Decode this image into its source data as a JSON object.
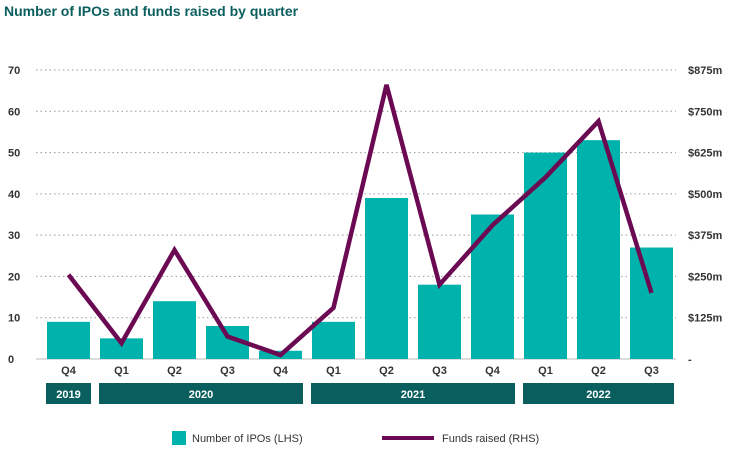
{
  "chart_data": {
    "type": "bar",
    "title": "Number of IPOs and funds raised by quarter",
    "categories": [
      "Q4",
      "Q1",
      "Q2",
      "Q3",
      "Q4",
      "Q1",
      "Q2",
      "Q3",
      "Q4",
      "Q1",
      "Q2",
      "Q3"
    ],
    "year_groups": [
      {
        "label": "2019",
        "span": 1
      },
      {
        "label": "2020",
        "span": 4
      },
      {
        "label": "2021",
        "span": 4
      },
      {
        "label": "2022",
        "span": 3
      }
    ],
    "series": [
      {
        "name": "Number of IPOs (LHS)",
        "type": "bar",
        "axis": "left",
        "color": "#00b2ac",
        "values": [
          9,
          5,
          14,
          8,
          2,
          9,
          39,
          18,
          35,
          50,
          53,
          27
        ]
      },
      {
        "name": "Funds raised (RHS)",
        "type": "line",
        "axis": "right",
        "color": "#6b0a52",
        "values": [
          255,
          48,
          330,
          68,
          12,
          155,
          830,
          225,
          405,
          550,
          720,
          200
        ]
      }
    ],
    "y_left": {
      "min": 0,
      "max": 70,
      "ticks": [
        0,
        10,
        20,
        30,
        40,
        50,
        60,
        70
      ],
      "tick_labels": [
        "0",
        "10",
        "20",
        "30",
        "40",
        "50",
        "60",
        "70"
      ]
    },
    "y_right": {
      "min": 0,
      "max": 875,
      "ticks": [
        0,
        125,
        250,
        375,
        500,
        625,
        750,
        875
      ],
      "tick_labels": [
        "-",
        "$125m",
        "$250m",
        "$375m",
        "$500m",
        "$625m",
        "$750m",
        "$875m"
      ]
    },
    "grid": true,
    "legend_position": "bottom"
  },
  "colors": {
    "title": "#0b5e5e",
    "bar": "#00b2ac",
    "line": "#6b0a52",
    "year_band": "#0b5e5e"
  }
}
